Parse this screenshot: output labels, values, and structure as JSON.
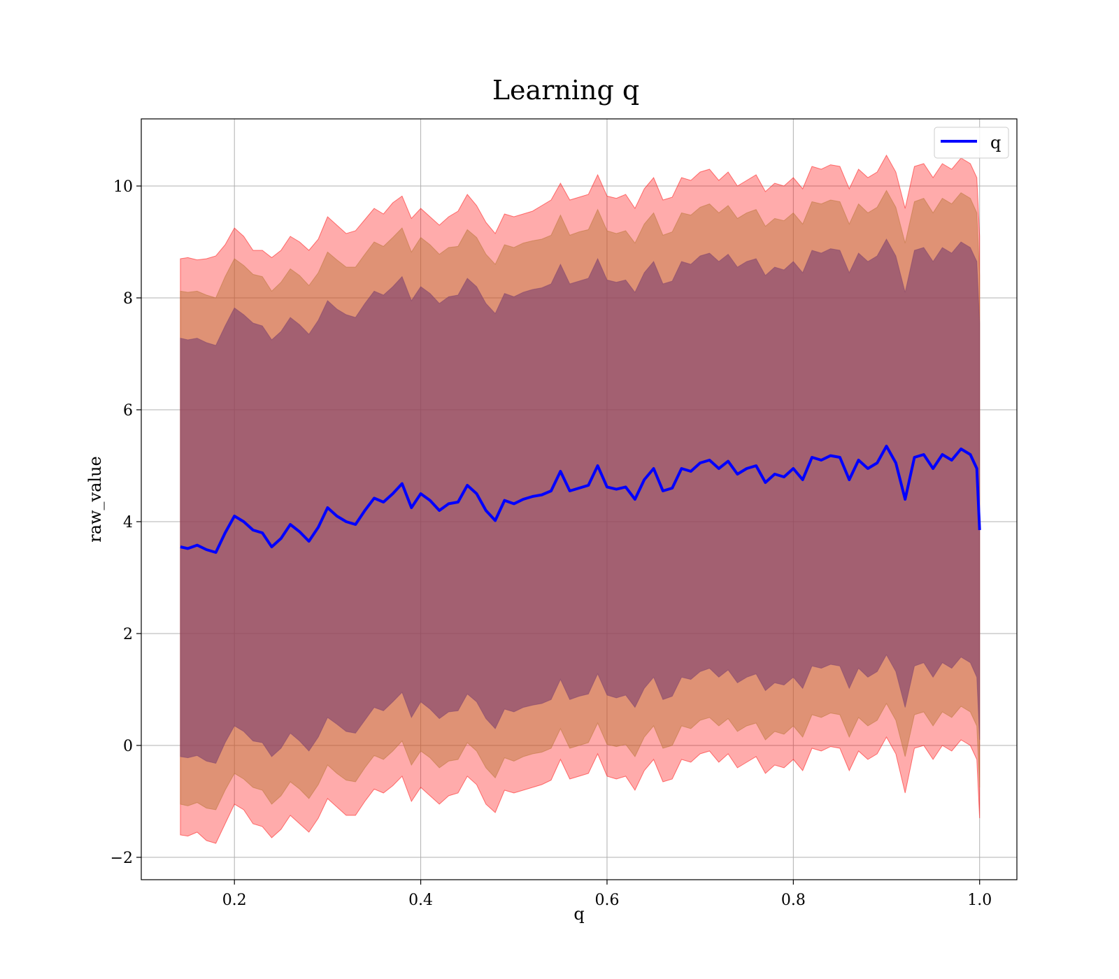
{
  "chart_data": {
    "type": "line",
    "title": "Learning q",
    "xlabel": "q",
    "ylabel": "raw_value",
    "xlim": [
      0.1,
      1.04
    ],
    "ylim": [
      -2.4,
      11.2
    ],
    "xticks": [
      0.2,
      0.4,
      0.6,
      0.8,
      1.0
    ],
    "xtick_labels": [
      "0.2",
      "0.4",
      "0.6",
      "0.8",
      "1.0"
    ],
    "yticks": [
      -2,
      0,
      2,
      4,
      6,
      8,
      10
    ],
    "ytick_labels": [
      "−2",
      "0",
      "2",
      "4",
      "6",
      "8",
      "10"
    ],
    "grid": true,
    "legend_position": "top-right",
    "x": [
      0.142,
      0.15,
      0.16,
      0.17,
      0.18,
      0.19,
      0.2,
      0.21,
      0.22,
      0.23,
      0.24,
      0.25,
      0.26,
      0.27,
      0.28,
      0.29,
      0.3,
      0.31,
      0.32,
      0.33,
      0.34,
      0.35,
      0.36,
      0.37,
      0.38,
      0.39,
      0.4,
      0.41,
      0.42,
      0.43,
      0.44,
      0.45,
      0.46,
      0.47,
      0.48,
      0.49,
      0.5,
      0.51,
      0.52,
      0.53,
      0.54,
      0.55,
      0.56,
      0.57,
      0.58,
      0.59,
      0.6,
      0.61,
      0.62,
      0.63,
      0.64,
      0.65,
      0.66,
      0.67,
      0.68,
      0.69,
      0.7,
      0.71,
      0.72,
      0.73,
      0.74,
      0.75,
      0.76,
      0.77,
      0.78,
      0.79,
      0.8,
      0.81,
      0.82,
      0.83,
      0.84,
      0.85,
      0.86,
      0.87,
      0.88,
      0.89,
      0.9,
      0.91,
      0.92,
      0.93,
      0.94,
      0.95,
      0.96,
      0.97,
      0.98,
      0.99,
      0.997,
      1.0
    ],
    "mean": [
      3.55,
      3.52,
      3.58,
      3.5,
      3.45,
      3.8,
      4.1,
      4.0,
      3.85,
      3.8,
      3.55,
      3.7,
      3.95,
      3.82,
      3.65,
      3.9,
      4.25,
      4.1,
      4.0,
      3.95,
      4.2,
      4.42,
      4.35,
      4.5,
      4.68,
      4.25,
      4.5,
      4.38,
      4.2,
      4.32,
      4.35,
      4.65,
      4.5,
      4.2,
      4.02,
      4.38,
      4.32,
      4.4,
      4.45,
      4.48,
      4.55,
      4.9,
      4.55,
      4.6,
      4.65,
      5.0,
      4.62,
      4.58,
      4.62,
      4.4,
      4.75,
      4.95,
      4.55,
      4.6,
      4.95,
      4.9,
      5.05,
      5.1,
      4.95,
      5.08,
      4.85,
      4.95,
      5.0,
      4.7,
      4.85,
      4.8,
      4.95,
      4.75,
      5.15,
      5.1,
      5.18,
      5.15,
      4.75,
      5.1,
      4.95,
      5.05,
      5.35,
      5.05,
      4.4,
      5.15,
      5.2,
      4.95,
      5.2,
      5.1,
      5.3,
      5.2,
      4.95,
      3.85
    ],
    "series": [
      {
        "band": "outer",
        "upper": [
          8.7,
          8.72,
          8.68,
          8.7,
          8.75,
          8.95,
          9.25,
          9.1,
          8.85,
          8.85,
          8.72,
          8.85,
          9.1,
          9.0,
          8.85,
          9.05,
          9.45,
          9.3,
          9.15,
          9.2,
          9.4,
          9.6,
          9.5,
          9.7,
          9.82,
          9.42,
          9.6,
          9.45,
          9.3,
          9.45,
          9.55,
          9.85,
          9.65,
          9.35,
          9.15,
          9.5,
          9.45,
          9.5,
          9.55,
          9.65,
          9.75,
          10.05,
          9.75,
          9.8,
          9.85,
          10.2,
          9.82,
          9.78,
          9.85,
          9.6,
          9.95,
          10.15,
          9.75,
          9.8,
          10.15,
          10.1,
          10.25,
          10.3,
          10.1,
          10.25,
          10.0,
          10.1,
          10.2,
          9.9,
          10.05,
          10.0,
          10.15,
          9.95,
          10.35,
          10.3,
          10.38,
          10.35,
          9.95,
          10.3,
          10.15,
          10.25,
          10.55,
          10.25,
          9.6,
          10.35,
          10.4,
          10.15,
          10.4,
          10.3,
          10.5,
          10.4,
          10.15,
          9.1
        ],
        "lower": [
          -1.6,
          -1.62,
          -1.55,
          -1.7,
          -1.75,
          -1.4,
          -1.05,
          -1.15,
          -1.4,
          -1.45,
          -1.65,
          -1.5,
          -1.25,
          -1.4,
          -1.55,
          -1.3,
          -0.95,
          -1.1,
          -1.25,
          -1.25,
          -1.0,
          -0.78,
          -0.85,
          -0.72,
          -0.55,
          -1.0,
          -0.75,
          -0.9,
          -1.05,
          -0.9,
          -0.85,
          -0.55,
          -0.7,
          -1.05,
          -1.2,
          -0.8,
          -0.85,
          -0.8,
          -0.75,
          -0.7,
          -0.62,
          -0.25,
          -0.6,
          -0.55,
          -0.5,
          -0.15,
          -0.55,
          -0.6,
          -0.55,
          -0.8,
          -0.45,
          -0.25,
          -0.65,
          -0.6,
          -0.25,
          -0.3,
          -0.15,
          -0.1,
          -0.3,
          -0.15,
          -0.4,
          -0.3,
          -0.2,
          -0.5,
          -0.35,
          -0.4,
          -0.25,
          -0.45,
          -0.05,
          -0.1,
          -0.02,
          -0.05,
          -0.45,
          -0.1,
          -0.25,
          -0.15,
          0.15,
          -0.15,
          -0.85,
          -0.05,
          0.0,
          -0.25,
          0.0,
          -0.1,
          0.1,
          0.0,
          -0.25,
          -1.3
        ]
      },
      {
        "band": "middle",
        "upper": [
          8.12,
          8.1,
          8.12,
          8.05,
          8.0,
          8.38,
          8.7,
          8.58,
          8.42,
          8.38,
          8.12,
          8.28,
          8.52,
          8.4,
          8.22,
          8.45,
          8.82,
          8.68,
          8.55,
          8.55,
          8.78,
          9.0,
          8.92,
          9.08,
          9.25,
          8.82,
          9.08,
          8.95,
          8.78,
          8.9,
          8.92,
          9.22,
          9.08,
          8.78,
          8.6,
          8.95,
          8.9,
          8.98,
          9.02,
          9.05,
          9.12,
          9.48,
          9.12,
          9.18,
          9.22,
          9.58,
          9.2,
          9.15,
          9.2,
          8.98,
          9.32,
          9.52,
          9.12,
          9.18,
          9.52,
          9.48,
          9.62,
          9.68,
          9.52,
          9.65,
          9.42,
          9.52,
          9.58,
          9.28,
          9.42,
          9.38,
          9.52,
          9.32,
          9.72,
          9.68,
          9.75,
          9.72,
          9.32,
          9.68,
          9.52,
          9.62,
          9.92,
          9.62,
          8.98,
          9.72,
          9.78,
          9.52,
          9.78,
          9.68,
          9.88,
          9.78,
          9.52,
          8.4
        ],
        "lower": [
          -1.05,
          -1.08,
          -1.02,
          -1.12,
          -1.15,
          -0.8,
          -0.5,
          -0.6,
          -0.75,
          -0.8,
          -1.05,
          -0.9,
          -0.65,
          -0.78,
          -0.95,
          -0.7,
          -0.35,
          -0.5,
          -0.62,
          -0.65,
          -0.4,
          -0.18,
          -0.25,
          -0.1,
          0.08,
          -0.35,
          -0.1,
          -0.22,
          -0.4,
          -0.28,
          -0.25,
          0.05,
          -0.1,
          -0.4,
          -0.58,
          -0.22,
          -0.28,
          -0.2,
          -0.15,
          -0.12,
          -0.05,
          0.3,
          -0.05,
          0.0,
          0.05,
          0.4,
          0.02,
          -0.02,
          0.02,
          -0.2,
          0.15,
          0.35,
          -0.05,
          0.0,
          0.35,
          0.3,
          0.45,
          0.5,
          0.35,
          0.48,
          0.25,
          0.35,
          0.4,
          0.1,
          0.25,
          0.2,
          0.35,
          0.15,
          0.55,
          0.5,
          0.58,
          0.55,
          0.15,
          0.5,
          0.35,
          0.45,
          0.75,
          0.45,
          -0.2,
          0.55,
          0.6,
          0.35,
          0.6,
          0.5,
          0.7,
          0.6,
          0.35,
          -0.75
        ]
      },
      {
        "band": "inner",
        "upper": [
          7.28,
          7.25,
          7.28,
          7.2,
          7.15,
          7.5,
          7.82,
          7.7,
          7.55,
          7.5,
          7.25,
          7.4,
          7.65,
          7.52,
          7.35,
          7.6,
          7.95,
          7.8,
          7.7,
          7.65,
          7.9,
          8.12,
          8.05,
          8.2,
          8.38,
          7.95,
          8.2,
          8.08,
          7.9,
          8.02,
          8.05,
          8.35,
          8.2,
          7.9,
          7.72,
          8.08,
          8.02,
          8.1,
          8.15,
          8.18,
          8.25,
          8.6,
          8.25,
          8.3,
          8.35,
          8.7,
          8.32,
          8.28,
          8.32,
          8.1,
          8.45,
          8.65,
          8.25,
          8.3,
          8.65,
          8.6,
          8.75,
          8.8,
          8.65,
          8.78,
          8.55,
          8.65,
          8.7,
          8.4,
          8.55,
          8.5,
          8.65,
          8.45,
          8.85,
          8.8,
          8.88,
          8.85,
          8.45,
          8.8,
          8.65,
          8.75,
          9.05,
          8.75,
          8.1,
          8.85,
          8.9,
          8.65,
          8.9,
          8.8,
          9.0,
          8.9,
          8.65,
          7.55
        ],
        "lower": [
          -0.2,
          -0.22,
          -0.18,
          -0.28,
          -0.32,
          0.05,
          0.35,
          0.25,
          0.08,
          0.05,
          -0.2,
          -0.05,
          0.22,
          0.08,
          -0.1,
          0.15,
          0.5,
          0.38,
          0.25,
          0.22,
          0.45,
          0.68,
          0.62,
          0.78,
          0.95,
          0.5,
          0.78,
          0.65,
          0.48,
          0.6,
          0.62,
          0.92,
          0.78,
          0.48,
          0.3,
          0.65,
          0.6,
          0.68,
          0.72,
          0.75,
          0.82,
          1.18,
          0.82,
          0.88,
          0.92,
          1.28,
          0.9,
          0.85,
          0.9,
          0.68,
          1.02,
          1.22,
          0.82,
          0.88,
          1.22,
          1.18,
          1.32,
          1.38,
          1.22,
          1.35,
          1.12,
          1.22,
          1.28,
          0.98,
          1.12,
          1.08,
          1.22,
          1.02,
          1.42,
          1.38,
          1.45,
          1.42,
          1.02,
          1.38,
          1.22,
          1.32,
          1.62,
          1.32,
          0.68,
          1.42,
          1.48,
          1.22,
          1.48,
          1.38,
          1.58,
          1.48,
          1.22,
          0.1
        ]
      }
    ],
    "mean_series": {
      "name": "q",
      "color": "#0000ff"
    },
    "colors": {
      "outer_band": "#ff0000",
      "middle_band": "#b87333",
      "inner_band": "#7b3f6e",
      "mean_line": "#0000ff",
      "grid": "#b0b0b0"
    }
  }
}
